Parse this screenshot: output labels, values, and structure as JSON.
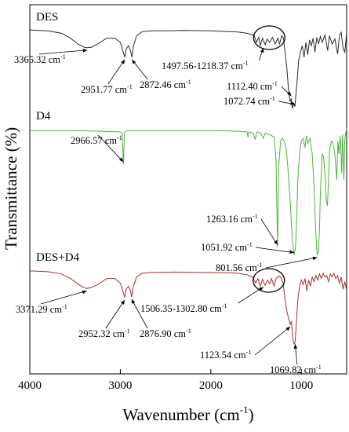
{
  "chart_data": {
    "type": "line",
    "xlabel": "Wavenumber (cm",
    "xlabel_sup": "-1",
    "xlabel_close": ")",
    "ylabel": "Transmittance (%)",
    "xlim": [
      4000,
      500
    ],
    "xticks": [
      4000,
      3000,
      2000,
      1000
    ],
    "grid": false,
    "unit": "cm",
    "unit_sup": "-1",
    "series": [
      {
        "name": "DES",
        "color": "#2a2a2a",
        "points": [
          [
            4000,
            0.03
          ],
          [
            3800,
            0.04
          ],
          [
            3650,
            0.07
          ],
          [
            3550,
            0.13
          ],
          [
            3470,
            0.2
          ],
          [
            3400,
            0.24
          ],
          [
            3365,
            0.245
          ],
          [
            3320,
            0.24
          ],
          [
            3250,
            0.2
          ],
          [
            3150,
            0.13
          ],
          [
            3060,
            0.13
          ],
          [
            3000,
            0.18
          ],
          [
            2975,
            0.27
          ],
          [
            2951,
            0.36
          ],
          [
            2935,
            0.26
          ],
          [
            2910,
            0.22
          ],
          [
            2890,
            0.27
          ],
          [
            2872,
            0.36
          ],
          [
            2855,
            0.22
          ],
          [
            2820,
            0.1
          ],
          [
            2760,
            0.05
          ],
          [
            2650,
            0.04
          ],
          [
            2500,
            0.04
          ],
          [
            2300,
            0.035
          ],
          [
            2000,
            0.04
          ],
          [
            1800,
            0.05
          ],
          [
            1700,
            0.055
          ],
          [
            1600,
            0.07
          ],
          [
            1520,
            0.1
          ],
          [
            1497,
            0.18
          ],
          [
            1470,
            0.12
          ],
          [
            1455,
            0.22
          ],
          [
            1430,
            0.13
          ],
          [
            1400,
            0.21
          ],
          [
            1380,
            0.14
          ],
          [
            1350,
            0.18
          ],
          [
            1320,
            0.12
          ],
          [
            1290,
            0.2
          ],
          [
            1260,
            0.13
          ],
          [
            1240,
            0.2
          ],
          [
            1218,
            0.1
          ],
          [
            1200,
            0.12
          ],
          [
            1180,
            0.3
          ],
          [
            1160,
            0.5
          ],
          [
            1140,
            0.78
          ],
          [
            1125,
            0.9
          ],
          [
            1112,
            0.86
          ],
          [
            1100,
            0.98
          ],
          [
            1085,
            0.92
          ],
          [
            1072,
            0.96
          ],
          [
            1060,
            0.8
          ],
          [
            1045,
            0.62
          ],
          [
            1030,
            0.4
          ],
          [
            1010,
            0.3
          ],
          [
            990,
            0.22
          ],
          [
            970,
            0.36
          ],
          [
            950,
            0.18
          ],
          [
            930,
            0.33
          ],
          [
            910,
            0.15
          ],
          [
            890,
            0.22
          ],
          [
            870,
            0.13
          ],
          [
            850,
            0.3
          ],
          [
            830,
            0.12
          ],
          [
            810,
            0.2
          ],
          [
            790,
            0.11
          ],
          [
            770,
            0.18
          ],
          [
            740,
            0.09
          ],
          [
            710,
            0.28
          ],
          [
            690,
            0.1
          ],
          [
            660,
            0.2
          ],
          [
            630,
            0.14
          ],
          [
            600,
            0.32
          ],
          [
            580,
            0.1
          ],
          [
            560,
            0.06
          ],
          [
            540,
            0.25
          ],
          [
            520,
            0.3
          ],
          [
            500,
            0.06
          ]
        ]
      },
      {
        "name": "D4",
        "color": "#4fb23d",
        "points": [
          [
            4000,
            0.02
          ],
          [
            3500,
            0.02
          ],
          [
            3200,
            0.025
          ],
          [
            3000,
            0.03
          ],
          [
            2980,
            0.04
          ],
          [
            2966,
            0.28
          ],
          [
            2955,
            0.04
          ],
          [
            2940,
            0.02
          ],
          [
            2700,
            0.02
          ],
          [
            2400,
            0.02
          ],
          [
            2100,
            0.02
          ],
          [
            1900,
            0.02
          ],
          [
            1700,
            0.025
          ],
          [
            1600,
            0.03
          ],
          [
            1590,
            0.07
          ],
          [
            1580,
            0.03
          ],
          [
            1530,
            0.04
          ],
          [
            1510,
            0.09
          ],
          [
            1490,
            0.03
          ],
          [
            1450,
            0.04
          ],
          [
            1420,
            0.08
          ],
          [
            1400,
            0.04
          ],
          [
            1350,
            0.05
          ],
          [
            1300,
            0.07
          ],
          [
            1280,
            0.25
          ],
          [
            1263,
            0.92
          ],
          [
            1250,
            0.3
          ],
          [
            1230,
            0.1
          ],
          [
            1210,
            0.08
          ],
          [
            1190,
            0.1
          ],
          [
            1170,
            0.15
          ],
          [
            1150,
            0.3
          ],
          [
            1120,
            0.6
          ],
          [
            1100,
            0.86
          ],
          [
            1080,
            0.98
          ],
          [
            1065,
            0.92
          ],
          [
            1051,
            0.7
          ],
          [
            1040,
            0.4
          ],
          [
            1020,
            0.2
          ],
          [
            1000,
            0.1
          ],
          [
            980,
            0.08
          ],
          [
            960,
            0.15
          ],
          [
            945,
            0.06
          ],
          [
            930,
            0.12
          ],
          [
            905,
            0.08
          ],
          [
            880,
            0.2
          ],
          [
            860,
            0.45
          ],
          [
            840,
            0.82
          ],
          [
            825,
            0.98
          ],
          [
            812,
            0.95
          ],
          [
            801,
            0.8
          ],
          [
            790,
            0.5
          ],
          [
            770,
            0.2
          ],
          [
            755,
            0.22
          ],
          [
            740,
            0.35
          ],
          [
            725,
            0.55
          ],
          [
            712,
            0.6
          ],
          [
            700,
            0.4
          ],
          [
            690,
            0.18
          ],
          [
            670,
            0.1
          ],
          [
            650,
            0.12
          ],
          [
            630,
            0.2
          ],
          [
            610,
            0.4
          ],
          [
            597,
            0.1
          ],
          [
            585,
            0.2
          ],
          [
            570,
            0.06
          ],
          [
            555,
            0.35
          ],
          [
            545,
            0.05
          ],
          [
            530,
            0.4
          ],
          [
            520,
            0.08
          ],
          [
            500,
            0.0
          ]
        ]
      },
      {
        "name": "DES+D4",
        "color": "#a3312b",
        "points": [
          [
            4000,
            0.02
          ],
          [
            3800,
            0.03
          ],
          [
            3650,
            0.06
          ],
          [
            3550,
            0.12
          ],
          [
            3460,
            0.2
          ],
          [
            3400,
            0.24
          ],
          [
            3371,
            0.25
          ],
          [
            3330,
            0.24
          ],
          [
            3250,
            0.2
          ],
          [
            3150,
            0.12
          ],
          [
            3060,
            0.12
          ],
          [
            3000,
            0.18
          ],
          [
            2975,
            0.27
          ],
          [
            2952,
            0.37
          ],
          [
            2935,
            0.26
          ],
          [
            2910,
            0.22
          ],
          [
            2890,
            0.27
          ],
          [
            2876,
            0.36
          ],
          [
            2855,
            0.22
          ],
          [
            2820,
            0.1
          ],
          [
            2760,
            0.05
          ],
          [
            2650,
            0.04
          ],
          [
            2400,
            0.035
          ],
          [
            2100,
            0.04
          ],
          [
            1800,
            0.045
          ],
          [
            1700,
            0.05
          ],
          [
            1600,
            0.07
          ],
          [
            1540,
            0.1
          ],
          [
            1506,
            0.18
          ],
          [
            1480,
            0.12
          ],
          [
            1455,
            0.22
          ],
          [
            1430,
            0.13
          ],
          [
            1400,
            0.21
          ],
          [
            1375,
            0.14
          ],
          [
            1350,
            0.19
          ],
          [
            1330,
            0.12
          ],
          [
            1302,
            0.22
          ],
          [
            1280,
            0.12
          ],
          [
            1260,
            0.1
          ],
          [
            1240,
            0.09
          ],
          [
            1220,
            0.12
          ],
          [
            1200,
            0.2
          ],
          [
            1180,
            0.4
          ],
          [
            1160,
            0.55
          ],
          [
            1140,
            0.65
          ],
          [
            1123,
            0.72
          ],
          [
            1110,
            0.68
          ],
          [
            1095,
            0.92
          ],
          [
            1080,
            0.98
          ],
          [
            1069,
            0.95
          ],
          [
            1055,
            0.7
          ],
          [
            1040,
            0.4
          ],
          [
            1020,
            0.22
          ],
          [
            1000,
            0.14
          ],
          [
            980,
            0.2
          ],
          [
            960,
            0.12
          ],
          [
            940,
            0.28
          ],
          [
            920,
            0.14
          ],
          [
            900,
            0.22
          ],
          [
            880,
            0.1
          ],
          [
            860,
            0.16
          ],
          [
            840,
            0.08
          ],
          [
            820,
            0.14
          ],
          [
            800,
            0.06
          ],
          [
            780,
            0.12
          ],
          [
            760,
            0.05
          ],
          [
            740,
            0.1
          ],
          [
            720,
            0.08
          ],
          [
            700,
            0.16
          ],
          [
            680,
            0.06
          ],
          [
            660,
            0.1
          ],
          [
            640,
            0.05
          ],
          [
            620,
            0.12
          ],
          [
            600,
            0.08
          ],
          [
            580,
            0.18
          ],
          [
            560,
            0.1
          ],
          [
            540,
            0.26
          ],
          [
            520,
            0.16
          ],
          [
            500,
            0.28
          ]
        ]
      }
    ],
    "annotations": [
      {
        "series": 0,
        "text": "3365.32 cm",
        "tip": [
          3365,
          0.245
        ],
        "side": "below-left"
      },
      {
        "series": 0,
        "text": "2951.77 cm",
        "tip": [
          2951,
          0.36
        ],
        "side": "below"
      },
      {
        "series": 0,
        "text": "2872.46 cm",
        "tip": [
          2872,
          0.36
        ],
        "side": "below-right"
      },
      {
        "series": 0,
        "text": "1497.56-1218.37 cm",
        "tip": [
          1420,
          0.22
        ],
        "side": "left-below"
      },
      {
        "series": 0,
        "text": "1112.40 cm",
        "tip": [
          1112,
          0.86
        ],
        "side": "left"
      },
      {
        "series": 0,
        "text": "1072.74 cm",
        "tip": [
          1072,
          0.96
        ],
        "side": "left-low"
      },
      {
        "series": 1,
        "text": "2966.57 cm",
        "tip": [
          2966,
          0.28
        ],
        "side": "below"
      },
      {
        "series": 1,
        "text": "1263.16 cm",
        "tip": [
          1263,
          0.92
        ],
        "side": "left-up"
      },
      {
        "series": 1,
        "text": "1051.92 cm",
        "tip": [
          1080,
          0.98
        ],
        "side": "left-mid"
      },
      {
        "series": 1,
        "text": "801.56 cm",
        "tip": [
          825,
          0.98
        ],
        "side": "left-low"
      },
      {
        "series": 2,
        "text": "3371.29 cm",
        "tip": [
          3371,
          0.25
        ],
        "side": "below-left"
      },
      {
        "series": 2,
        "text": "2952.32 cm",
        "tip": [
          2952,
          0.37
        ],
        "side": "below"
      },
      {
        "series": 2,
        "text": "2876.90 cm",
        "tip": [
          2876,
          0.36
        ],
        "side": "below-right"
      },
      {
        "series": 2,
        "text": "1506.35-1302.80 cm",
        "tip": [
          1420,
          0.2
        ],
        "side": "left-below"
      },
      {
        "series": 2,
        "text": "1123.54 cm",
        "tip": [
          1123,
          0.72
        ],
        "side": "left"
      },
      {
        "series": 2,
        "text": "1069.82 cm",
        "tip": [
          1069,
          0.95
        ],
        "side": "below"
      }
    ],
    "highlight_regions": [
      {
        "series": 0,
        "center": 1355
      },
      {
        "series": 2,
        "center": 1360
      }
    ]
  }
}
